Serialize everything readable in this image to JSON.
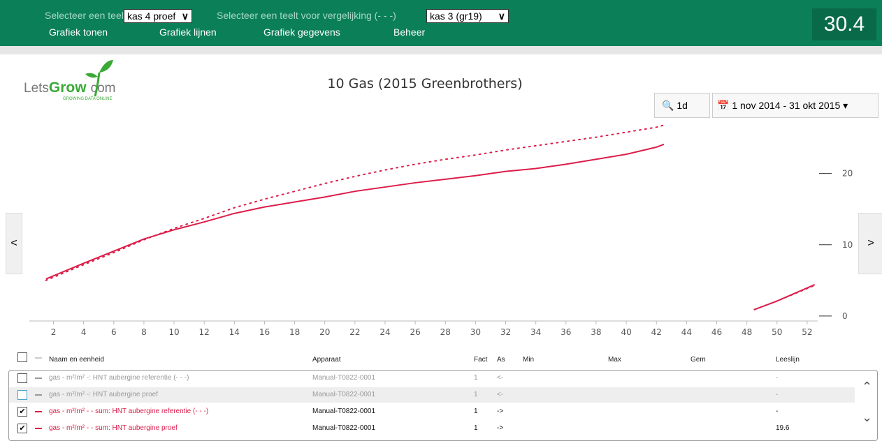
{
  "header": {
    "teelt_label": "Selecteer een teelt",
    "teelt_value": "kas 4 proef",
    "compare_label": "Selecteer een teelt voor vergelijking (- - -)",
    "compare_value": "kas 3 (gr19)",
    "menu": [
      "Grafiek tonen",
      "Grafiek lijnen",
      "Grafiek gegevens",
      "Beheer"
    ],
    "score": "30.4"
  },
  "logo": {
    "part1": "Lets",
    "part2": "Grow",
    "part3": "com",
    "tagline": "GROWING DATA ONLINE"
  },
  "controls": {
    "zoom": "1d",
    "range": "1 nov 2014 - 31 okt 2015",
    "prev": "<",
    "next": ">"
  },
  "chart_data": {
    "type": "line",
    "title": "10 Gas (2015 Greenbrothers)",
    "x": [
      1.5,
      4,
      6,
      8,
      10,
      12,
      14,
      16,
      18,
      20,
      22,
      24,
      26,
      28,
      30,
      32,
      34,
      36,
      38,
      40,
      42,
      42.5,
      45,
      48.5,
      50,
      52.5
    ],
    "series": [
      {
        "color": "#dc1e4a",
        "style": "dotted",
        "values": [
          5.0,
          7.2,
          8.9,
          10.7,
          12.3,
          13.7,
          15.2,
          16.4,
          17.5,
          18.6,
          19.6,
          20.5,
          21.3,
          22.0,
          22.6,
          23.3,
          23.9,
          24.5,
          25.1,
          25.8,
          26.5,
          26.8,
          null,
          0.9,
          2.1,
          4.3
        ]
      },
      {
        "color": "#dc1e4a",
        "style": "solid",
        "values": [
          5.2,
          7.4,
          9.1,
          10.8,
          12.1,
          13.2,
          14.4,
          15.3,
          16.0,
          16.7,
          17.5,
          18.1,
          18.7,
          19.2,
          19.7,
          20.3,
          20.7,
          21.3,
          22.0,
          22.7,
          23.7,
          24.1,
          null,
          0.9,
          2.1,
          4.4
        ]
      }
    ],
    "xlim": [
      0.4,
      52.7
    ],
    "xticks": [
      2,
      4,
      6,
      8,
      10,
      12,
      14,
      16,
      18,
      20,
      22,
      24,
      26,
      28,
      30,
      32,
      34,
      36,
      38,
      40,
      42,
      44,
      46,
      48,
      50,
      52
    ],
    "ylim": [
      -0.7,
      28
    ],
    "yticks": [
      0,
      10,
      20
    ],
    "y_axis_side": "right"
  },
  "table": {
    "columns": [
      "Naam en eenheid",
      "Apparaat",
      "Fact",
      "As",
      "Min",
      "Max",
      "Gem",
      "Leeslijn"
    ],
    "rows": [
      {
        "checked": false,
        "color": "#999999",
        "name": "gas - m²/m² -: HNT aubergine referentie (- - -)",
        "device": "Manual-T0822-0001",
        "fact": 1,
        "as": "<-",
        "leeslijn": "-"
      },
      {
        "checked": false,
        "color": "#999999",
        "name": "gas - m²/m² -: HNT aubergine proef",
        "device": "Manual-T0822-0001",
        "fact": 1,
        "as": "<-",
        "leeslijn": "-"
      },
      {
        "checked": true,
        "color": "#dc1e4a",
        "name": "gas - m²/m² - - sum: HNT aubergine referentie (- - -)",
        "device": "Manual-T0822-0001",
        "fact": 1,
        "as": "->",
        "leeslijn": "-"
      },
      {
        "checked": true,
        "color": "#dc1e4a",
        "name": "gas - m²/m² - - sum: HNT aubergine proef",
        "device": "Manual-T0822-0001",
        "fact": 1,
        "as": "->",
        "leeslijn": 19.6
      }
    ]
  }
}
